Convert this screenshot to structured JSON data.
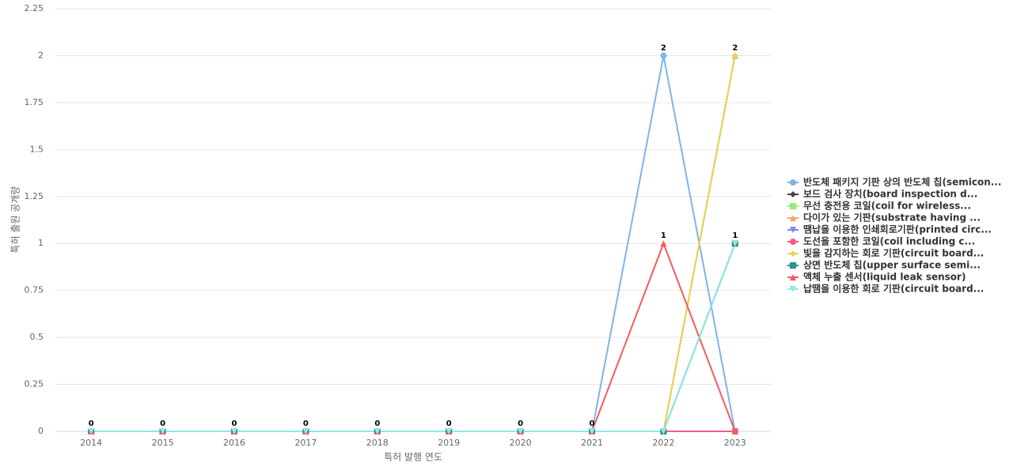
{
  "chart_data": {
    "type": "line",
    "x_label": "특허 발행 연도",
    "y_label": "특허 출원 공개량",
    "categories": [
      "2014",
      "2015",
      "2016",
      "2017",
      "2018",
      "2019",
      "2020",
      "2021",
      "2022",
      "2023"
    ],
    "ylim": [
      0,
      2.25
    ],
    "yticks": [
      0,
      0.25,
      0.5,
      0.75,
      1,
      1.25,
      1.5,
      1.75,
      2,
      2.25
    ],
    "grid": true,
    "legend": "right",
    "series": [
      {
        "name": "반도체 패키지 기판 상의 반도체 칩(semicon...",
        "color": "#7cb5ec",
        "values": [
          0,
          0,
          0,
          0,
          0,
          0,
          0,
          0,
          2,
          0
        ]
      },
      {
        "name": "보드 검사 장치(board inspection d...",
        "color": "#434348",
        "values": [
          0,
          0,
          0,
          0,
          0,
          0,
          0,
          0,
          0,
          0
        ]
      },
      {
        "name": "무선 충전용 코일(coil for wireless...",
        "color": "#90ed7d",
        "values": [
          0,
          0,
          0,
          0,
          0,
          0,
          0,
          0,
          0,
          0
        ]
      },
      {
        "name": "다이가 있는 기판(substrate having ...",
        "color": "#f7a35c",
        "values": [
          0,
          0,
          0,
          0,
          0,
          0,
          0,
          0,
          0,
          2
        ]
      },
      {
        "name": "땜납을 이용한 인쇄회로기판(printed circ...",
        "color": "#8085e9",
        "values": [
          0,
          0,
          0,
          0,
          0,
          0,
          0,
          0,
          0,
          0
        ]
      },
      {
        "name": "도선을 포함한 코일(coil including c...",
        "color": "#f15c80",
        "values": [
          0,
          0,
          0,
          0,
          0,
          0,
          0,
          0,
          0,
          0
        ]
      },
      {
        "name": "빛을 감지하는 회로 기판(circuit board...",
        "color": "#e4d354",
        "values": [
          0,
          0,
          0,
          0,
          0,
          0,
          0,
          0,
          0,
          2
        ]
      },
      {
        "name": "상면 반도체 칩(upper surface semi...",
        "color": "#2b908f",
        "values": [
          0,
          0,
          0,
          0,
          0,
          0,
          0,
          0,
          0,
          1
        ]
      },
      {
        "name": "액체 누출 센서(liquid leak sensor)",
        "color": "#f45b5b",
        "values": [
          0,
          0,
          0,
          0,
          0,
          0,
          0,
          0,
          1,
          0
        ]
      },
      {
        "name": "납땜을 이용한 회로 기판(circuit board...",
        "color": "#91e8e1",
        "values": [
          0,
          0,
          0,
          0,
          0,
          0,
          0,
          0,
          0,
          1
        ]
      }
    ]
  }
}
